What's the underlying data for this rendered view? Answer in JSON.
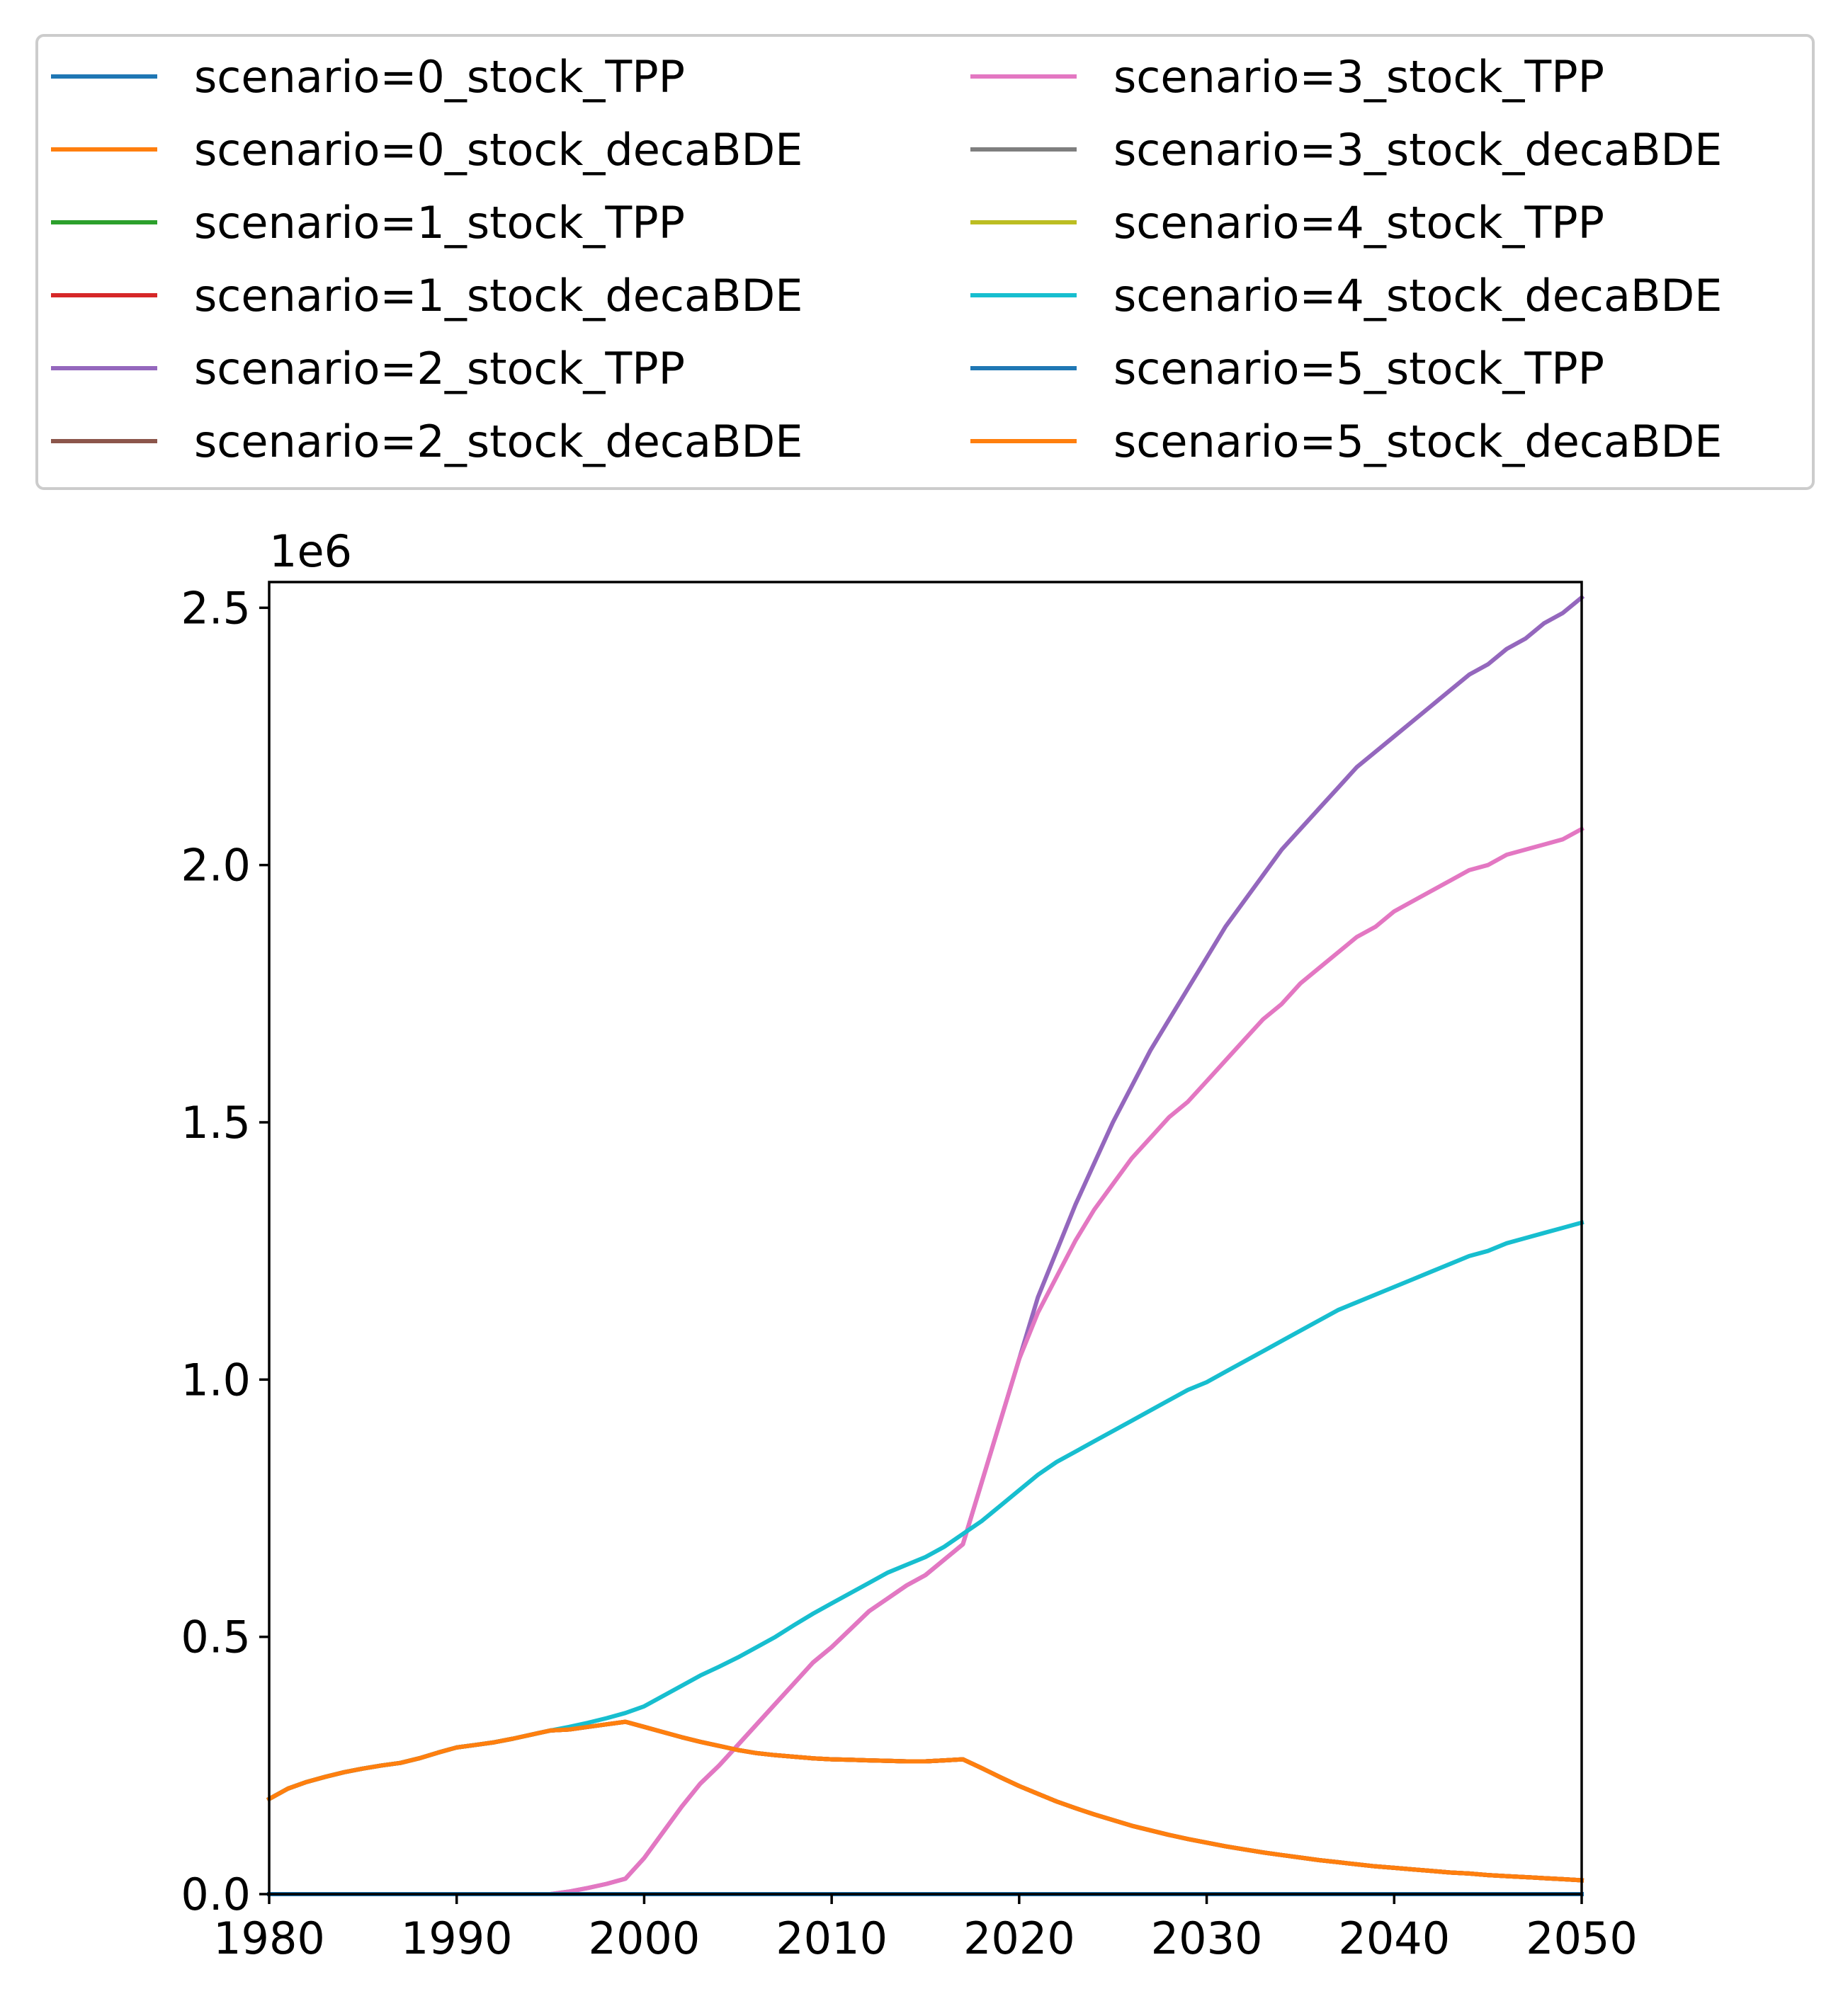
{
  "chart_data": {
    "type": "line",
    "title": "",
    "xlabel": "",
    "ylabel": "",
    "offset_text": "1e6",
    "xlim": [
      1980,
      2050
    ],
    "ylim": [
      0,
      2.55
    ],
    "y_unit_multiplier": 1000000,
    "xticks": [
      "1980",
      "1990",
      "2000",
      "2010",
      "2020",
      "2030",
      "2040",
      "2050"
    ],
    "yticks": [
      "0.0",
      "0.5",
      "1.0",
      "1.5",
      "2.0",
      "2.5"
    ],
    "grid": false,
    "legend_position": "top (above plot), 2 columns",
    "x": [
      1980,
      1981,
      1982,
      1983,
      1984,
      1985,
      1986,
      1987,
      1988,
      1989,
      1990,
      1991,
      1992,
      1993,
      1994,
      1995,
      1996,
      1997,
      1998,
      1999,
      2000,
      2001,
      2002,
      2003,
      2004,
      2005,
      2006,
      2007,
      2008,
      2009,
      2010,
      2011,
      2012,
      2013,
      2014,
      2015,
      2016,
      2017,
      2018,
      2019,
      2020,
      2021,
      2022,
      2023,
      2024,
      2025,
      2026,
      2027,
      2028,
      2029,
      2030,
      2031,
      2032,
      2033,
      2034,
      2035,
      2036,
      2037,
      2038,
      2039,
      2040,
      2041,
      2042,
      2043,
      2044,
      2045,
      2046,
      2047,
      2048,
      2049,
      2050
    ],
    "series": [
      {
        "name": "scenario=0_stock_TPP",
        "color": "#1f77b4",
        "values": [
          0,
          0,
          0,
          0,
          0,
          0,
          0,
          0,
          0,
          0,
          0,
          0,
          0,
          0,
          0,
          0,
          0,
          0,
          0,
          0,
          0,
          0,
          0,
          0,
          0,
          0,
          0,
          0,
          0,
          0,
          0,
          0,
          0,
          0,
          0,
          0,
          0,
          0,
          0,
          0,
          0,
          0,
          0,
          0,
          0,
          0,
          0,
          0,
          0,
          0,
          0,
          0,
          0,
          0,
          0,
          0,
          0,
          0,
          0,
          0,
          0,
          0,
          0,
          0,
          0,
          0,
          0,
          0,
          0,
          0,
          0
        ]
      },
      {
        "name": "scenario=0_stock_decaBDE",
        "color": "#ff7f0e",
        "values": [
          0.185,
          0.205,
          0.218,
          0.228,
          0.237,
          0.244,
          0.25,
          0.255,
          0.264,
          0.275,
          0.285,
          0.29,
          0.295,
          0.302,
          0.31,
          0.318,
          0.32,
          0.325,
          0.33,
          0.335,
          0.325,
          0.315,
          0.305,
          0.296,
          0.288,
          0.28,
          0.274,
          0.27,
          0.267,
          0.264,
          0.262,
          0.261,
          0.26,
          0.259,
          0.258,
          0.258,
          0.26,
          0.262,
          0.245,
          0.227,
          0.21,
          0.195,
          0.18,
          0.167,
          0.155,
          0.144,
          0.133,
          0.124,
          0.115,
          0.107,
          0.1,
          0.093,
          0.087,
          0.081,
          0.076,
          0.071,
          0.066,
          0.062,
          0.058,
          0.054,
          0.051,
          0.048,
          0.045,
          0.042,
          0.04,
          0.037,
          0.035,
          0.033,
          0.031,
          0.029,
          0.027
        ]
      },
      {
        "name": "scenario=1_stock_TPP",
        "color": "#2ca02c",
        "values": [
          0,
          0,
          0,
          0,
          0,
          0,
          0,
          0,
          0,
          0,
          0,
          0,
          0,
          0,
          0,
          0,
          0,
          0,
          0,
          0,
          0,
          0,
          0,
          0,
          0,
          0,
          0,
          0,
          0,
          0,
          0,
          0,
          0,
          0,
          0,
          0,
          0,
          0,
          0,
          0,
          0,
          0,
          0,
          0,
          0,
          0,
          0,
          0,
          0,
          0,
          0,
          0,
          0,
          0,
          0,
          0,
          0,
          0,
          0,
          0,
          0,
          0,
          0,
          0,
          0,
          0,
          0,
          0,
          0,
          0,
          0
        ]
      },
      {
        "name": "scenario=1_stock_decaBDE",
        "color": "#d62728",
        "values": [
          0.185,
          0.205,
          0.218,
          0.228,
          0.237,
          0.244,
          0.25,
          0.255,
          0.264,
          0.275,
          0.285,
          0.29,
          0.295,
          0.302,
          0.31,
          0.318,
          0.32,
          0.325,
          0.33,
          0.335,
          0.325,
          0.315,
          0.305,
          0.296,
          0.288,
          0.28,
          0.274,
          0.27,
          0.267,
          0.264,
          0.262,
          0.261,
          0.26,
          0.259,
          0.258,
          0.258,
          0.26,
          0.262,
          0.245,
          0.227,
          0.21,
          0.195,
          0.18,
          0.167,
          0.155,
          0.144,
          0.133,
          0.124,
          0.115,
          0.107,
          0.1,
          0.093,
          0.087,
          0.081,
          0.076,
          0.071,
          0.066,
          0.062,
          0.058,
          0.054,
          0.051,
          0.048,
          0.045,
          0.042,
          0.04,
          0.037,
          0.035,
          0.033,
          0.031,
          0.029,
          0.027
        ]
      },
      {
        "name": "scenario=2_stock_TPP",
        "color": "#9467bd",
        "values": [
          0,
          0,
          0,
          0,
          0,
          0,
          0,
          0,
          0,
          0,
          0,
          0,
          0,
          0,
          0,
          0,
          0.005,
          0.012,
          0.02,
          0.03,
          0.07,
          0.12,
          0.17,
          0.215,
          0.25,
          0.29,
          0.33,
          0.37,
          0.41,
          0.45,
          0.48,
          0.515,
          0.55,
          0.575,
          0.6,
          0.62,
          0.65,
          0.68,
          0.8,
          0.92,
          1.04,
          1.16,
          1.25,
          1.34,
          1.42,
          1.5,
          1.57,
          1.64,
          1.7,
          1.76,
          1.82,
          1.88,
          1.93,
          1.98,
          2.03,
          2.07,
          2.11,
          2.15,
          2.19,
          2.22,
          2.25,
          2.28,
          2.31,
          2.34,
          2.37,
          2.39,
          2.42,
          2.44,
          2.47,
          2.49,
          2.52
        ]
      },
      {
        "name": "scenario=2_stock_decaBDE",
        "color": "#8c564b",
        "values": [
          0.185,
          0.205,
          0.218,
          0.228,
          0.237,
          0.244,
          0.25,
          0.255,
          0.264,
          0.275,
          0.285,
          0.29,
          0.295,
          0.302,
          0.31,
          0.318,
          0.32,
          0.325,
          0.33,
          0.335,
          0.325,
          0.315,
          0.305,
          0.296,
          0.288,
          0.28,
          0.274,
          0.27,
          0.267,
          0.264,
          0.262,
          0.261,
          0.26,
          0.259,
          0.258,
          0.258,
          0.26,
          0.262,
          0.245,
          0.227,
          0.21,
          0.195,
          0.18,
          0.167,
          0.155,
          0.144,
          0.133,
          0.124,
          0.115,
          0.107,
          0.1,
          0.093,
          0.087,
          0.081,
          0.076,
          0.071,
          0.066,
          0.062,
          0.058,
          0.054,
          0.051,
          0.048,
          0.045,
          0.042,
          0.04,
          0.037,
          0.035,
          0.033,
          0.031,
          0.029,
          0.027
        ]
      },
      {
        "name": "scenario=3_stock_TPP",
        "color": "#e377c2",
        "values": [
          0,
          0,
          0,
          0,
          0,
          0,
          0,
          0,
          0,
          0,
          0,
          0,
          0,
          0,
          0,
          0,
          0.005,
          0.012,
          0.02,
          0.03,
          0.07,
          0.12,
          0.17,
          0.215,
          0.25,
          0.29,
          0.33,
          0.37,
          0.41,
          0.45,
          0.48,
          0.515,
          0.55,
          0.575,
          0.6,
          0.62,
          0.65,
          0.68,
          0.8,
          0.92,
          1.04,
          1.13,
          1.2,
          1.27,
          1.33,
          1.38,
          1.43,
          1.47,
          1.51,
          1.54,
          1.58,
          1.62,
          1.66,
          1.7,
          1.73,
          1.77,
          1.8,
          1.83,
          1.86,
          1.88,
          1.91,
          1.93,
          1.95,
          1.97,
          1.99,
          2.0,
          2.02,
          2.03,
          2.04,
          2.05,
          2.07
        ]
      },
      {
        "name": "scenario=3_stock_decaBDE",
        "color": "#7f7f7f",
        "values": [
          0.185,
          0.205,
          0.218,
          0.228,
          0.237,
          0.244,
          0.25,
          0.255,
          0.264,
          0.275,
          0.285,
          0.29,
          0.295,
          0.302,
          0.31,
          0.318,
          0.32,
          0.325,
          0.33,
          0.335,
          0.325,
          0.315,
          0.305,
          0.296,
          0.288,
          0.28,
          0.274,
          0.27,
          0.267,
          0.264,
          0.262,
          0.261,
          0.26,
          0.259,
          0.258,
          0.258,
          0.26,
          0.262,
          0.245,
          0.227,
          0.21,
          0.195,
          0.18,
          0.167,
          0.155,
          0.144,
          0.133,
          0.124,
          0.115,
          0.107,
          0.1,
          0.093,
          0.087,
          0.081,
          0.076,
          0.071,
          0.066,
          0.062,
          0.058,
          0.054,
          0.051,
          0.048,
          0.045,
          0.042,
          0.04,
          0.037,
          0.035,
          0.033,
          0.031,
          0.029,
          0.027
        ]
      },
      {
        "name": "scenario=4_stock_TPP",
        "color": "#bcbd22",
        "values": [
          0,
          0,
          0,
          0,
          0,
          0,
          0,
          0,
          0,
          0,
          0,
          0,
          0,
          0,
          0,
          0,
          0,
          0,
          0,
          0,
          0,
          0,
          0,
          0,
          0,
          0,
          0,
          0,
          0,
          0,
          0,
          0,
          0,
          0,
          0,
          0,
          0,
          0,
          0,
          0,
          0,
          0,
          0,
          0,
          0,
          0,
          0,
          0,
          0,
          0,
          0,
          0,
          0,
          0,
          0,
          0,
          0,
          0,
          0,
          0,
          0,
          0,
          0,
          0,
          0,
          0,
          0,
          0,
          0,
          0,
          0
        ]
      },
      {
        "name": "scenario=4_stock_decaBDE",
        "color": "#17becf",
        "values": [
          0.185,
          0.205,
          0.218,
          0.228,
          0.237,
          0.244,
          0.25,
          0.255,
          0.264,
          0.275,
          0.285,
          0.29,
          0.295,
          0.302,
          0.31,
          0.318,
          0.325,
          0.333,
          0.342,
          0.352,
          0.365,
          0.385,
          0.405,
          0.425,
          0.442,
          0.46,
          0.48,
          0.5,
          0.523,
          0.545,
          0.565,
          0.585,
          0.605,
          0.625,
          0.64,
          0.655,
          0.675,
          0.7,
          0.725,
          0.755,
          0.785,
          0.815,
          0.84,
          0.86,
          0.88,
          0.9,
          0.92,
          0.94,
          0.96,
          0.98,
          0.995,
          1.015,
          1.035,
          1.055,
          1.075,
          1.095,
          1.115,
          1.135,
          1.15,
          1.165,
          1.18,
          1.195,
          1.21,
          1.225,
          1.24,
          1.25,
          1.265,
          1.275,
          1.285,
          1.295,
          1.305
        ]
      },
      {
        "name": "scenario=5_stock_TPP",
        "color": "#1f77b4",
        "values": [
          0,
          0,
          0,
          0,
          0,
          0,
          0,
          0,
          0,
          0,
          0,
          0,
          0,
          0,
          0,
          0,
          0,
          0,
          0,
          0,
          0,
          0,
          0,
          0,
          0,
          0,
          0,
          0,
          0,
          0,
          0,
          0,
          0,
          0,
          0,
          0,
          0,
          0,
          0,
          0,
          0,
          0,
          0,
          0,
          0,
          0,
          0,
          0,
          0,
          0,
          0,
          0,
          0,
          0,
          0,
          0,
          0,
          0,
          0,
          0,
          0,
          0,
          0,
          0,
          0,
          0,
          0,
          0,
          0,
          0,
          0
        ]
      },
      {
        "name": "scenario=5_stock_decaBDE",
        "color": "#ff7f0e",
        "values": [
          0.185,
          0.205,
          0.218,
          0.228,
          0.237,
          0.244,
          0.25,
          0.255,
          0.264,
          0.275,
          0.285,
          0.29,
          0.295,
          0.302,
          0.31,
          0.318,
          0.32,
          0.325,
          0.33,
          0.335,
          0.325,
          0.315,
          0.305,
          0.296,
          0.288,
          0.28,
          0.274,
          0.27,
          0.267,
          0.264,
          0.262,
          0.261,
          0.26,
          0.259,
          0.258,
          0.258,
          0.26,
          0.262,
          0.245,
          0.227,
          0.21,
          0.195,
          0.18,
          0.167,
          0.155,
          0.144,
          0.133,
          0.124,
          0.115,
          0.107,
          0.1,
          0.093,
          0.087,
          0.081,
          0.076,
          0.071,
          0.066,
          0.062,
          0.058,
          0.054,
          0.051,
          0.048,
          0.045,
          0.042,
          0.04,
          0.037,
          0.035,
          0.033,
          0.031,
          0.029,
          0.027
        ]
      }
    ]
  }
}
